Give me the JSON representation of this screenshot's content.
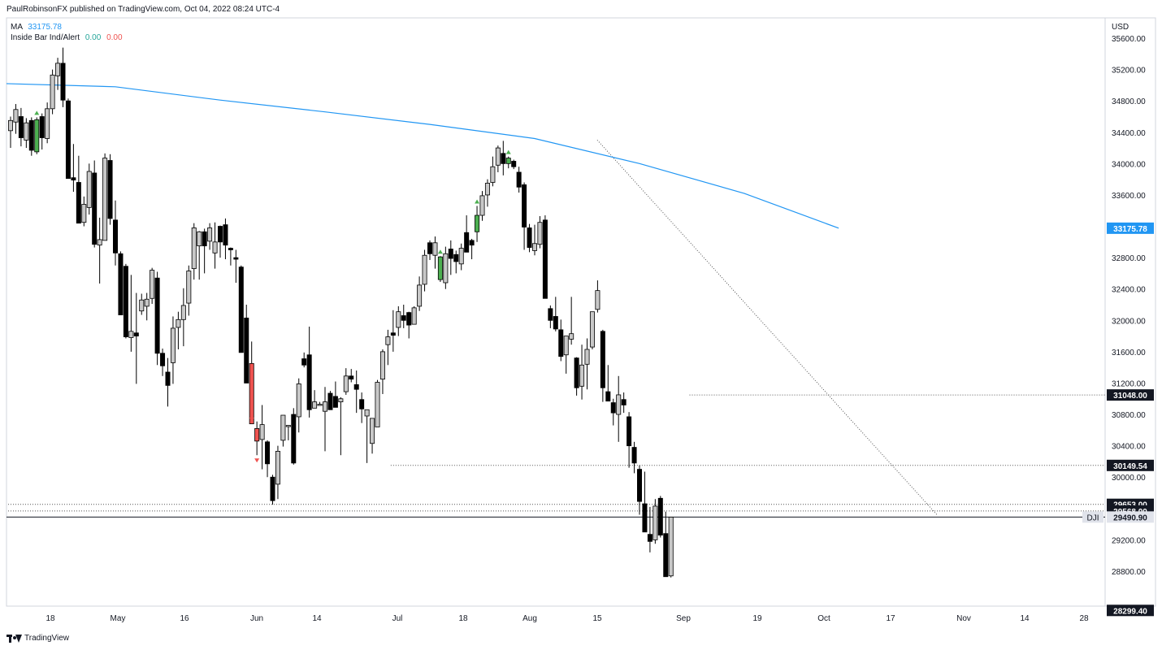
{
  "header": {
    "published": "PaulRobinsonFX published on TradingView.com, Oct 04, 2022 08:24 UTC-4"
  },
  "legend": {
    "ma_label": "MA",
    "ma_value": "33175.78",
    "ind_label": "Inside Bar Ind/Alert",
    "ind_value1": "0.00",
    "ind_value2": "0.00"
  },
  "footer": {
    "brand": "TradingView"
  },
  "colors": {
    "ma_line": "#2196f3",
    "up_candle_fill": "#c8c8c8",
    "down_candle_fill": "#000000",
    "inside_bar_up": "#4caf50",
    "inside_bar_down": "#ef5350",
    "axis_text": "#131722",
    "ind_value1": "#26a69a",
    "ind_value2": "#ef5350"
  },
  "chart_data": {
    "type": "candlestick",
    "currency": "USD",
    "symbol": "DJI",
    "ylim": [
      28299.4,
      35800
    ],
    "y_ticks": [
      "35600.00",
      "35200.00",
      "34800.00",
      "34400.00",
      "34000.00",
      "33600.00",
      "33200.00",
      "32800.00",
      "32400.00",
      "32000.00",
      "31600.00",
      "31200.00",
      "30800.00",
      "30400.00",
      "30000.00",
      "29200.00",
      "28800.00"
    ],
    "price_labels": [
      {
        "text": "33175.78",
        "value": 33175.78,
        "style": "ma"
      },
      {
        "text": "31048.00",
        "value": 31048.0,
        "style": "black"
      },
      {
        "text": "30149.54",
        "value": 30149.54,
        "style": "black"
      },
      {
        "text": "29653.00",
        "value": 29653.0,
        "style": "black"
      },
      {
        "text": "29568.00",
        "value": 29568.0,
        "style": "black"
      },
      {
        "text": "29490.90",
        "value": 29490.9,
        "style": "last",
        "tag": "DJI"
      },
      {
        "text": "28299.40",
        "value": 28299.4,
        "style": "black"
      }
    ],
    "x_tick_labels": [
      "18",
      "May",
      "16",
      "Jun",
      "14",
      "Jul",
      "18",
      "Aug",
      "15",
      "Sep",
      "19",
      "Oct",
      "17",
      "Nov",
      "14",
      "28"
    ],
    "horizontal_levels": [
      {
        "value": 31048.0,
        "from_bar": 130
      },
      {
        "value": 30149.54,
        "from_bar": 73
      },
      {
        "value": 29653.0,
        "from_bar": 0
      },
      {
        "value": 29568.0,
        "from_bar": 0
      }
    ],
    "last_price": 29490.9,
    "trendline": {
      "from": [
        "2022-08-16",
        34300
      ],
      "to": [
        "2022-10-25",
        29520
      ]
    },
    "moving_average": {
      "value": 33175.78,
      "x_bar": [
        0,
        20,
        40,
        60,
        80,
        100,
        120,
        140,
        158
      ],
      "y": [
        35020,
        34980,
        34810,
        34660,
        34500,
        34320,
        34000,
        33620,
        33175.78
      ]
    },
    "candles_ohlc": [
      [
        34420,
        34600,
        34200,
        34550
      ],
      [
        34530,
        34760,
        34380,
        34690
      ],
      [
        34600,
        34710,
        34220,
        34330
      ],
      [
        34300,
        34580,
        34200,
        34520
      ],
      [
        34550,
        34590,
        34100,
        34170
      ],
      [
        34150,
        34590,
        34120,
        34560
      ],
      [
        34600,
        34640,
        34180,
        34330
      ],
      [
        34320,
        34780,
        34260,
        34700
      ],
      [
        34700,
        35200,
        34630,
        35130
      ],
      [
        35120,
        35350,
        34940,
        35280
      ],
      [
        35280,
        35480,
        34720,
        34810
      ],
      [
        34800,
        34830,
        33840,
        33810
      ],
      [
        33820,
        34250,
        33640,
        33790
      ],
      [
        33760,
        34100,
        33240,
        33240
      ],
      [
        33250,
        33580,
        33200,
        33480
      ],
      [
        33440,
        34000,
        33350,
        33900
      ],
      [
        33880,
        34040,
        32930,
        32970
      ],
      [
        32960,
        33310,
        32470,
        33030
      ],
      [
        33020,
        34130,
        33080,
        34070
      ],
      [
        34040,
        34120,
        33220,
        33300
      ],
      [
        33280,
        33530,
        32700,
        32860
      ],
      [
        32850,
        32880,
        32380,
        32070
      ],
      [
        32690,
        32720,
        31770,
        31790
      ],
      [
        31780,
        32580,
        31600,
        31860
      ],
      [
        31840,
        32350,
        31190,
        31800
      ],
      [
        32120,
        32340,
        32070,
        32260
      ],
      [
        32180,
        32350,
        32000,
        32270
      ],
      [
        32280,
        32670,
        32210,
        32640
      ],
      [
        32540,
        32620,
        31430,
        31580
      ],
      [
        31580,
        31640,
        31290,
        31420
      ],
      [
        31340,
        31520,
        30900,
        31170
      ],
      [
        31460,
        32050,
        31190,
        31900
      ],
      [
        31910,
        32110,
        31630,
        32010
      ],
      [
        32010,
        32410,
        31670,
        32190
      ],
      [
        32220,
        32700,
        32060,
        32630
      ],
      [
        32660,
        33240,
        32520,
        33180
      ],
      [
        32950,
        33140,
        32520,
        33130
      ],
      [
        33130,
        33170,
        32600,
        32950
      ],
      [
        33010,
        33240,
        32900,
        33180
      ],
      [
        32860,
        33250,
        32660,
        33000
      ],
      [
        33200,
        33210,
        32800,
        33000
      ],
      [
        33220,
        33300,
        32780,
        32960
      ],
      [
        32920,
        32930,
        32700,
        32900
      ],
      [
        32800,
        32900,
        32480,
        32780
      ],
      [
        32680,
        32700,
        32080,
        31590
      ],
      [
        32030,
        32200,
        31700,
        31200
      ],
      [
        31450,
        31730,
        30800,
        30680
      ],
      [
        30620,
        30710,
        30280,
        30460
      ],
      [
        30480,
        30920,
        30100,
        30670
      ],
      [
        30450,
        30470,
        30000,
        30170
      ],
      [
        30000,
        30030,
        29650,
        29700
      ],
      [
        29910,
        30400,
        29720,
        30330
      ],
      [
        30470,
        30790,
        30390,
        30790
      ],
      [
        30650,
        30660,
        30470,
        30660
      ],
      [
        30800,
        30880,
        30160,
        30180
      ],
      [
        30770,
        31260,
        30570,
        31190
      ],
      [
        31510,
        31590,
        31400,
        31430
      ],
      [
        31560,
        31920,
        30760,
        30860
      ],
      [
        30880,
        31110,
        30880,
        30960
      ],
      [
        30920,
        30960,
        30970,
        30930
      ],
      [
        30840,
        31150,
        30330,
        30960
      ],
      [
        31070,
        31100,
        30860,
        30860
      ],
      [
        31030,
        31220,
        30950,
        30890
      ],
      [
        30960,
        31020,
        30280,
        31000
      ],
      [
        31090,
        31390,
        31050,
        31290
      ],
      [
        31290,
        31380,
        31210,
        31250
      ],
      [
        31180,
        31360,
        30820,
        31120
      ],
      [
        30990,
        31080,
        30690,
        30870
      ],
      [
        30780,
        30810,
        30180,
        30860
      ],
      [
        30430,
        30750,
        30300,
        30750
      ],
      [
        30640,
        31240,
        30920,
        31210
      ],
      [
        31250,
        31630,
        31060,
        31600
      ],
      [
        31690,
        31880,
        31430,
        31790
      ],
      [
        31840,
        32130,
        31600,
        31810
      ],
      [
        31910,
        32180,
        31800,
        32110
      ],
      [
        32060,
        32200,
        31900,
        32000
      ],
      [
        32100,
        32110,
        31770,
        31940
      ],
      [
        31950,
        32180,
        31980,
        32160
      ],
      [
        32180,
        32560,
        32120,
        32450
      ],
      [
        32460,
        32900,
        32370,
        32830
      ],
      [
        32990,
        33020,
        32770,
        32850
      ],
      [
        32830,
        33070,
        32660,
        32990
      ],
      [
        32810,
        32820,
        32490,
        32520
      ],
      [
        32480,
        32940,
        32400,
        32850
      ],
      [
        32910,
        33020,
        32580,
        32790
      ],
      [
        32840,
        32890,
        32600,
        32750
      ],
      [
        32720,
        32980,
        32640,
        32920
      ],
      [
        33120,
        33340,
        32870,
        32870
      ],
      [
        33020,
        33040,
        32780,
        32960
      ],
      [
        33130,
        33460,
        33000,
        33340
      ],
      [
        33340,
        33650,
        33270,
        33590
      ],
      [
        33600,
        33800,
        33450,
        33750
      ],
      [
        33760,
        34090,
        33710,
        33960
      ],
      [
        33980,
        34230,
        33890,
        34200
      ],
      [
        34130,
        34290,
        33850,
        34000
      ],
      [
        34070,
        34090,
        33940,
        34000
      ],
      [
        34030,
        34050,
        33930,
        33960
      ],
      [
        33890,
        33960,
        33630,
        33700
      ],
      [
        33730,
        33760,
        32900,
        33190
      ],
      [
        33180,
        33230,
        32870,
        32930
      ],
      [
        32890,
        33220,
        32830,
        32980
      ],
      [
        32970,
        33330,
        32920,
        33250
      ],
      [
        33280,
        33340,
        32990,
        32280
      ],
      [
        32150,
        32190,
        31900,
        32000
      ],
      [
        32050,
        32300,
        31860,
        31890
      ],
      [
        31880,
        32010,
        31480,
        31540
      ],
      [
        31560,
        31690,
        31320,
        31800
      ],
      [
        31760,
        32300,
        31690,
        31830
      ],
      [
        31520,
        31530,
        31040,
        31140
      ],
      [
        31160,
        31690,
        30990,
        31430
      ],
      [
        31440,
        31770,
        31120,
        31630
      ],
      [
        31660,
        32110,
        31630,
        32110
      ],
      [
        32140,
        32510,
        32100,
        32380
      ],
      [
        31860,
        31880,
        30960,
        31140
      ],
      [
        31090,
        31430,
        30980,
        30970
      ],
      [
        30950,
        31000,
        30660,
        30820
      ],
      [
        30800,
        31290,
        30450,
        31050
      ],
      [
        30990,
        31080,
        30820,
        30920
      ],
      [
        30770,
        30830,
        30120,
        30400
      ],
      [
        30380,
        30450,
        30050,
        30180
      ],
      [
        30100,
        30150,
        29520,
        29690
      ],
      [
        29660,
        30070,
        29530,
        29300
      ],
      [
        29270,
        29620,
        29040,
        29180
      ],
      [
        29200,
        29720,
        29150,
        29630
      ],
      [
        29730,
        29760,
        29230,
        29260
      ],
      [
        29280,
        29560,
        29030,
        28730
      ],
      [
        28740,
        29280,
        28720,
        29490
      ]
    ],
    "inside_bar_markers": [
      {
        "bar": 5,
        "type": "up"
      },
      {
        "bar": 46,
        "type": "down"
      },
      {
        "bar": 47,
        "type": "down"
      },
      {
        "bar": 82,
        "type": "up"
      },
      {
        "bar": 89,
        "type": "up"
      },
      {
        "bar": 95,
        "type": "up"
      }
    ]
  }
}
